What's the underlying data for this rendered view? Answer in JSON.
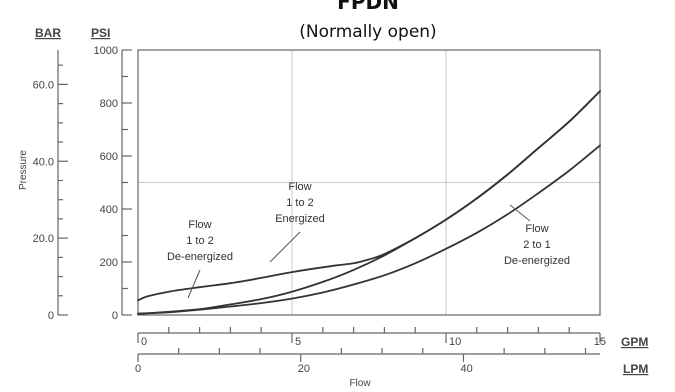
{
  "chart_data": {
    "type": "line",
    "title": "FPDN",
    "subtitle": "(Normally open)",
    "ylabel": "Pressure",
    "xlabel": "Flow",
    "units": {
      "bar": "BAR",
      "psi": "PSI",
      "gpm": "GPM",
      "lpm": "LPM"
    },
    "x_unit": "GPM",
    "y_unit": "PSI",
    "xlim": [
      0,
      15
    ],
    "ylim": [
      0,
      1000
    ],
    "grid": true,
    "x_ticks": [
      {
        "value": 0,
        "label": "0"
      },
      {
        "value": 5,
        "label": "5"
      },
      {
        "value": 10,
        "label": "10"
      },
      {
        "value": 15,
        "label": "15"
      }
    ],
    "lpm_ticks": [
      {
        "value": 0,
        "label": "0"
      },
      {
        "value": 20,
        "label": "20"
      },
      {
        "value": 40,
        "label": "40"
      }
    ],
    "psi_ticks": [
      {
        "value": 0,
        "label": "0"
      },
      {
        "value": 200,
        "label": "200"
      },
      {
        "value": 400,
        "label": "400"
      },
      {
        "value": 600,
        "label": "600"
      },
      {
        "value": 800,
        "label": "800"
      },
      {
        "value": 1000,
        "label": "1000"
      }
    ],
    "bar_ticks": [
      {
        "value": 0,
        "label": "0"
      },
      {
        "value": 20,
        "label": "20.0"
      },
      {
        "value": 40,
        "label": "40.0"
      },
      {
        "value": 60,
        "label": "60.0"
      }
    ],
    "series": [
      {
        "name": "Flow 1 to 2 Energized",
        "x": [
          0,
          0.5,
          1,
          2,
          3,
          4,
          5,
          6,
          7,
          8,
          9,
          10,
          11,
          12,
          13,
          14,
          15
        ],
        "y": [
          5,
          8,
          12,
          22,
          40,
          60,
          88,
          125,
          170,
          225,
          290,
          360,
          440,
          530,
          630,
          730,
          845
        ]
      },
      {
        "name": "Flow 1 to 2 De-energized",
        "x": [
          0,
          0.3,
          1,
          2,
          3,
          4,
          5,
          6,
          6.5,
          7,
          7.5,
          8,
          9,
          10,
          11,
          12,
          13,
          14,
          15
        ],
        "y": [
          55,
          70,
          88,
          105,
          120,
          140,
          162,
          180,
          188,
          195,
          210,
          230,
          290,
          360,
          440,
          530,
          630,
          730,
          845
        ]
      },
      {
        "name": "Flow 2 to 1 De-energized",
        "x": [
          0,
          1,
          2,
          3,
          4,
          5,
          6,
          7,
          8,
          9,
          10,
          11,
          12,
          13,
          14,
          15
        ],
        "y": [
          5,
          10,
          20,
          32,
          45,
          62,
          85,
          115,
          150,
          195,
          250,
          310,
          380,
          460,
          545,
          640
        ]
      }
    ],
    "annotations": [
      {
        "id": "energized",
        "lines": [
          "Flow",
          "1 to 2",
          "Energized"
        ]
      },
      {
        "id": "de-energized",
        "lines": [
          "Flow",
          "1 to 2",
          "De-energized"
        ]
      },
      {
        "id": "flow-2-to-1",
        "lines": [
          "Flow",
          "2 to 1",
          "De-energized"
        ]
      }
    ]
  }
}
